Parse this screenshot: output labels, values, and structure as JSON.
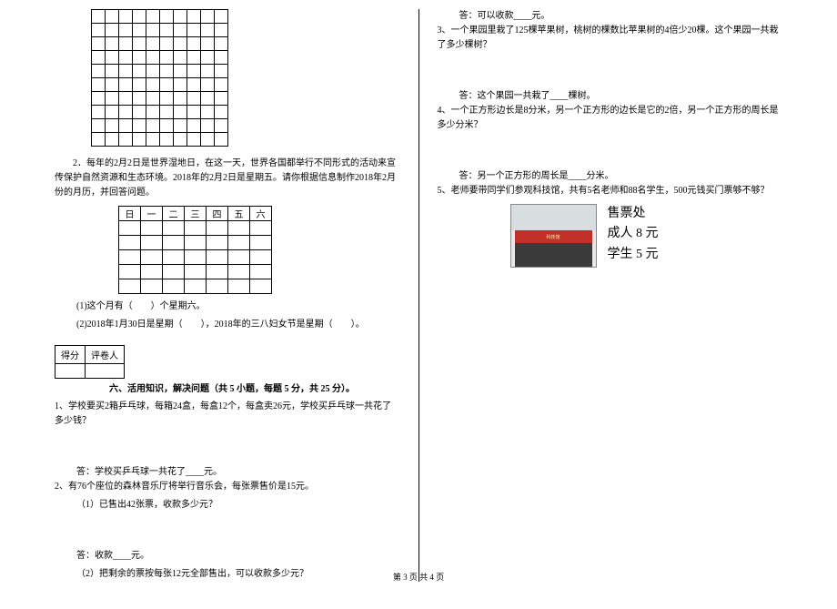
{
  "left": {
    "grid": {
      "rows": 10,
      "cols": 10
    },
    "q2_text": "2．每年的2月2日是世界湿地日，在这一天，世界各国都举行不同形式的活动来宣传保护自然资源和生态环境。2018年的2月2日是星期五。请你根据信息制作2018年2月份的月历，并回答问题。",
    "calendar_headers": [
      "日",
      "一",
      "二",
      "三",
      "四",
      "五",
      "六"
    ],
    "calendar_rows": 5,
    "q2_sub1": "(1)这个月有（　　）个星期六。",
    "q2_sub2": "(2)2018年1月30日是星期（　　），2018年的三八妇女节是星期（　　）。",
    "score_labels": {
      "score": "得分",
      "reviewer": "评卷人"
    },
    "section6_title": "六、活用知识，解决问题（共 5 小题，每题 5 分，共 25 分）。",
    "p1": "1、学校要买2箱乒乓球，每箱24盒，每盒12个，每盒卖26元，学校买乒乓球一共花了多少钱？",
    "p1_ans": "答：学校买乒乓球一共花了____元。",
    "p2": "2、有76个座位的森林音乐厅将举行音乐会，每张票售价是15元。",
    "p2_sub1": "（1）已售出42张票，收款多少元？",
    "p2_ans1": "答：收款____元。",
    "p2_sub2": "（2）把剩余的票按每张12元全部售出，可以收款多少元？"
  },
  "right": {
    "p2_ans2": "答：可以收款____元。",
    "p3": "3、一个果园里栽了125棵苹果树，桃树的棵数比苹果树的4倍少20棵。这个果园一共栽了多少棵树？",
    "p3_ans": "答：这个果园一共栽了____棵树。",
    "p4": "4、一个正方形边长是8分米，另一个正方形的边长是它的2倍，另一个正方形的周长是多少分米？",
    "p4_ans": "答：另一个正方形的周长是____分米。",
    "p5": "5、老师要带同学们参观科技馆，共有5名老师和88名学生，500元钱买门票够不够？",
    "ticket": {
      "title": "售票处",
      "adult": "成人 8 元",
      "student": "学生 5 元",
      "banner_small": "科技馆"
    }
  },
  "footer": "第 3 页  共 4 页"
}
